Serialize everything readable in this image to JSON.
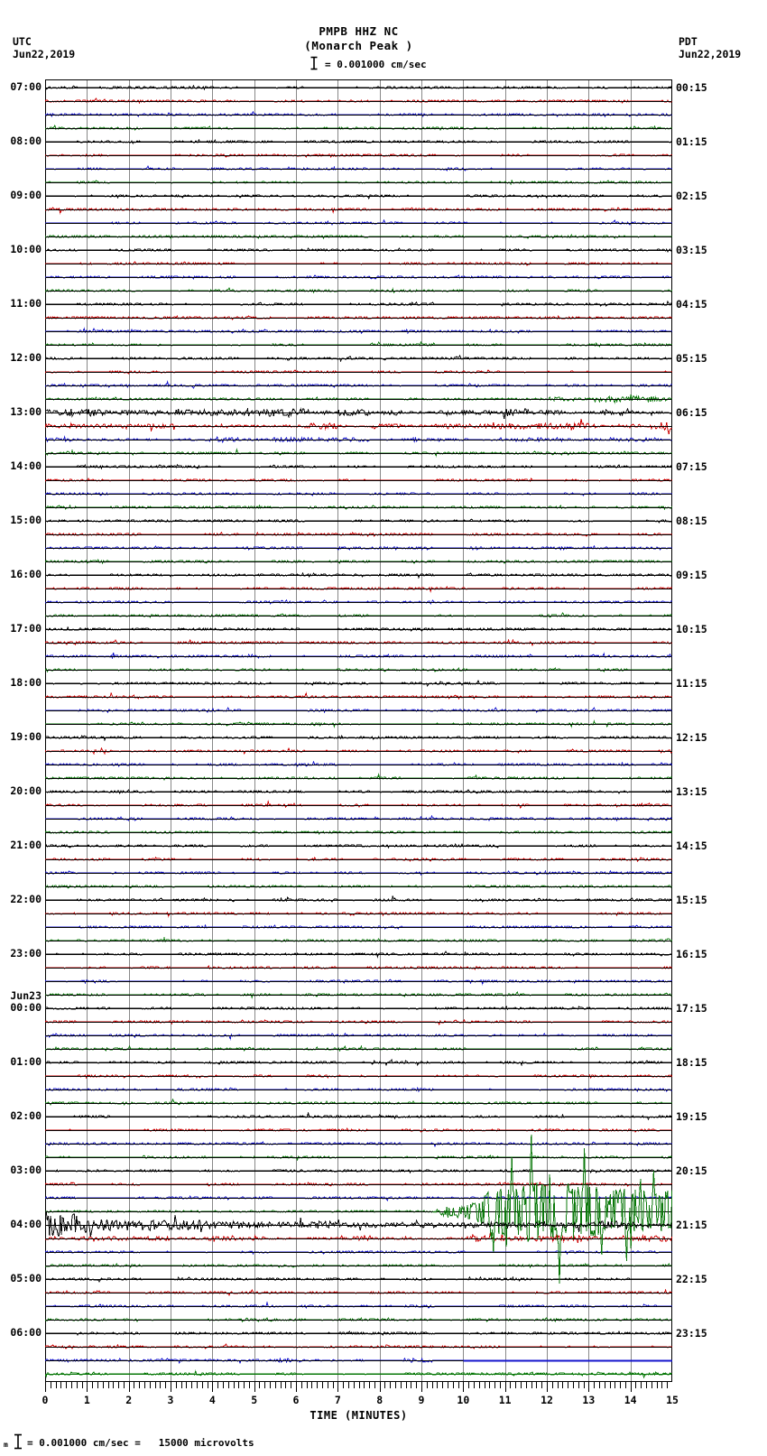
{
  "header": {
    "left_tz": "UTC",
    "left_date": "Jun22,2019",
    "right_tz": "PDT",
    "right_date": "Jun22,2019",
    "title": "PMPB HHZ NC",
    "subtitle": "(Monarch Peak )",
    "scale_text": "= 0.001000 cm/sec"
  },
  "footer": {
    "prefix": "m",
    "text": "= 0.001000 cm/sec =   15000 microvolts"
  },
  "axis": {
    "xlabel": "TIME (MINUTES)",
    "tick_labels": [
      "0",
      "1",
      "2",
      "3",
      "4",
      "5",
      "6",
      "7",
      "8",
      "9",
      "10",
      "11",
      "12",
      "13",
      "14",
      "15"
    ]
  },
  "chart_data": {
    "type": "line",
    "subtype": "helicorder-seismogram",
    "station": "PMPB",
    "channel": "HHZ",
    "network": "NC",
    "station_name": "Monarch Peak",
    "scale": "0.001000 cm/sec = 15000 microvolts",
    "minutes_per_line": 15,
    "lines": 96,
    "utc_start_label": "Jun22,2019 07:00 UTC",
    "local_start_label": "Jun22,2019 00:15 PDT",
    "color_cycle": [
      "#000000",
      "#cc0000",
      "#1414cc",
      "#0a780a"
    ],
    "grid_color": "#888888",
    "default_noise_amp": 0.7,
    "left_labels": [
      {
        "i": 0,
        "lines": [
          "07:00"
        ]
      },
      {
        "i": 4,
        "lines": [
          "08:00"
        ]
      },
      {
        "i": 8,
        "lines": [
          "09:00"
        ]
      },
      {
        "i": 12,
        "lines": [
          "10:00"
        ]
      },
      {
        "i": 16,
        "lines": [
          "11:00"
        ]
      },
      {
        "i": 20,
        "lines": [
          "12:00"
        ]
      },
      {
        "i": 24,
        "lines": [
          "13:00"
        ]
      },
      {
        "i": 28,
        "lines": [
          "14:00"
        ]
      },
      {
        "i": 32,
        "lines": [
          "15:00"
        ]
      },
      {
        "i": 36,
        "lines": [
          "16:00"
        ]
      },
      {
        "i": 40,
        "lines": [
          "17:00"
        ]
      },
      {
        "i": 44,
        "lines": [
          "18:00"
        ]
      },
      {
        "i": 48,
        "lines": [
          "19:00"
        ]
      },
      {
        "i": 52,
        "lines": [
          "20:00"
        ]
      },
      {
        "i": 56,
        "lines": [
          "21:00"
        ]
      },
      {
        "i": 60,
        "lines": [
          "22:00"
        ]
      },
      {
        "i": 64,
        "lines": [
          "23:00"
        ]
      },
      {
        "i": 68,
        "lines": [
          "Jun23",
          "00:00"
        ]
      },
      {
        "i": 72,
        "lines": [
          "01:00"
        ]
      },
      {
        "i": 76,
        "lines": [
          "02:00"
        ]
      },
      {
        "i": 80,
        "lines": [
          "03:00"
        ]
      },
      {
        "i": 84,
        "lines": [
          "04:00"
        ]
      },
      {
        "i": 88,
        "lines": [
          "05:00"
        ]
      },
      {
        "i": 92,
        "lines": [
          "06:00"
        ]
      }
    ],
    "right_labels": [
      {
        "i": 0,
        "text": "00:15"
      },
      {
        "i": 4,
        "text": "01:15"
      },
      {
        "i": 8,
        "text": "02:15"
      },
      {
        "i": 12,
        "text": "03:15"
      },
      {
        "i": 16,
        "text": "04:15"
      },
      {
        "i": 20,
        "text": "05:15"
      },
      {
        "i": 24,
        "text": "06:15"
      },
      {
        "i": 28,
        "text": "07:15"
      },
      {
        "i": 32,
        "text": "08:15"
      },
      {
        "i": 36,
        "text": "09:15"
      },
      {
        "i": 40,
        "text": "10:15"
      },
      {
        "i": 44,
        "text": "11:15"
      },
      {
        "i": 48,
        "text": "12:15"
      },
      {
        "i": 52,
        "text": "13:15"
      },
      {
        "i": 56,
        "text": "14:15"
      },
      {
        "i": 60,
        "text": "15:15"
      },
      {
        "i": 64,
        "text": "16:15"
      },
      {
        "i": 68,
        "text": "17:15"
      },
      {
        "i": 72,
        "text": "18:15"
      },
      {
        "i": 76,
        "text": "19:15"
      },
      {
        "i": 80,
        "text": "20:15"
      },
      {
        "i": 84,
        "text": "21:15"
      },
      {
        "i": 88,
        "text": "22:15"
      },
      {
        "i": 92,
        "text": "23:15"
      }
    ],
    "special_rows": {
      "23": {
        "env": [
          [
            0,
            0.7
          ],
          [
            11.8,
            0.8
          ],
          [
            12.2,
            2.0
          ],
          [
            15,
            2.2
          ]
        ]
      },
      "24": {
        "env": [
          [
            0,
            2.0
          ],
          [
            15,
            2.3
          ]
        ],
        "zc": 0.2
      },
      "25": {
        "env": [
          [
            0,
            1.6
          ],
          [
            14.5,
            1.8
          ],
          [
            14.7,
            4.5
          ],
          [
            15,
            5
          ]
        ],
        "spikes": [
          {
            "m": 14.93,
            "a": -9
          }
        ]
      },
      "26": {
        "env": [
          [
            0,
            3.0
          ],
          [
            0.8,
            1.4
          ],
          [
            15,
            1.1
          ]
        ]
      },
      "83": {
        "env": [
          [
            0,
            0.7
          ],
          [
            9.3,
            0.7
          ],
          [
            9.45,
            4
          ],
          [
            9.9,
            7
          ],
          [
            10.3,
            10
          ],
          [
            10.55,
            20
          ],
          [
            10.9,
            26
          ],
          [
            11.3,
            27
          ],
          [
            11.65,
            34
          ],
          [
            12.0,
            30
          ],
          [
            12.5,
            32
          ],
          [
            13.0,
            30
          ],
          [
            13.5,
            26
          ],
          [
            14.0,
            28
          ],
          [
            14.5,
            22
          ],
          [
            15,
            24
          ]
        ],
        "spiky": true,
        "over_from": 9.3,
        "zc": 0,
        "clamp": 85,
        "spikes": [
          {
            "m": 11.62,
            "a": 85
          },
          {
            "m": 12.3,
            "a": -80
          },
          {
            "m": 12.9,
            "a": 70
          },
          {
            "m": 13.9,
            "a": -55
          },
          {
            "m": 10.72,
            "a": -45
          },
          {
            "m": 14.55,
            "a": 45
          },
          {
            "m": 11.15,
            "a": 60
          },
          {
            "m": 13.3,
            "a": -48
          }
        ]
      },
      "84": {
        "env": [
          [
            0,
            13
          ],
          [
            0.5,
            9
          ],
          [
            1,
            7.5
          ],
          [
            1.6,
            8
          ],
          [
            2,
            6
          ],
          [
            3,
            5
          ],
          [
            4,
            4.5
          ],
          [
            5,
            4
          ],
          [
            6,
            3.5
          ],
          [
            8,
            3
          ],
          [
            10,
            2.6
          ],
          [
            15,
            2.2
          ]
        ],
        "zc": 0,
        "over_from": 0
      },
      "85": {
        "env": [
          [
            0,
            1.4
          ],
          [
            9,
            1.4
          ],
          [
            9.5,
            2.2
          ],
          [
            15,
            2.2
          ]
        ]
      },
      "94": {
        "env": [
          [
            0,
            1.0
          ],
          [
            2.2,
            1.0
          ],
          [
            2.4,
            1.8
          ],
          [
            3.3,
            1.8
          ],
          [
            3.5,
            1.0
          ],
          [
            9.9,
            1.0
          ],
          [
            10,
            0
          ],
          [
            15,
            0
          ]
        ],
        "baseline_to": 10,
        "flat": {
          "from": 10,
          "to": 15,
          "dy": 0
        }
      },
      "95": {
        "baseline": "self",
        "amp": 0.8
      }
    },
    "notable_events": [
      {
        "when": "Jun22 12:45-13:45 UTC",
        "desc": "elevated noise on traces (green/black/red/blue), red burst with down-spike at end of 13:15 line",
        "rows": [
          23,
          24,
          25,
          26
        ]
      },
      {
        "when": "Jun23 03:54 UTC (20:54 PDT)",
        "desc": "large earthquake on green 03:45 trace starting ~minute 9.3, clipped spikes, coda decaying through black 04:00 line",
        "rows": [
          83,
          84,
          85
        ]
      },
      {
        "when": "Jun23 06:40 UTC",
        "desc": "blue 06:30 trace flat-lines from minute 10 to 15",
        "rows": [
          94
        ]
      },
      {
        "when": "Jun23 06:45 UTC",
        "desc": "green 06:45 trace drawn as near-flat green line",
        "rows": [
          95
        ]
      }
    ]
  }
}
